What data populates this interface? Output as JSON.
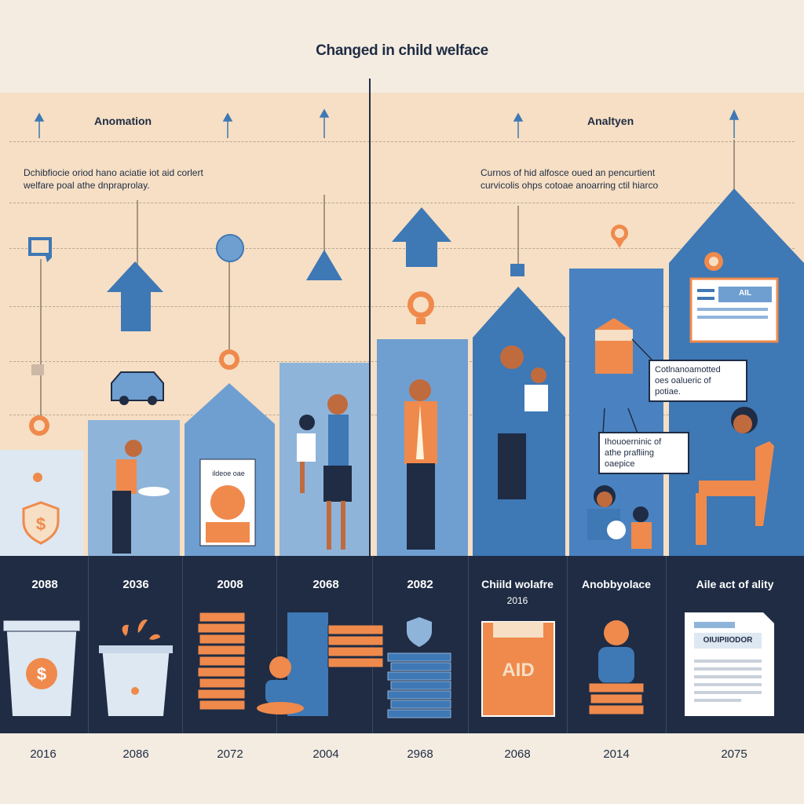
{
  "title": "Changed in child welface",
  "left_section": {
    "label": "Anomation",
    "paragraph_line1": "Dchibfiocie oriod hano aciatie iot aid corlert",
    "paragraph_line2": "welfare poal athe dnpraprolay."
  },
  "right_section": {
    "label": "Analtyen",
    "paragraph_line1": "Curnos of hid alfosce oued an pencurtient",
    "paragraph_line2": "curvicolis ohps cotoae anoarring ctil hiarco"
  },
  "poster_label": "ildeoe oae",
  "callout_1": [
    "Cotlnanoamotted",
    "oes oalueric of",
    "potiae."
  ],
  "callout_2": [
    "Ihouoerninic of",
    "athe prafliing",
    "oaepice"
  ],
  "doc_label": "AIL",
  "bottom_columns": [
    {
      "top_year": "2088",
      "caption": "",
      "bottom_year": "2016",
      "icon": "dollar-cup-icon"
    },
    {
      "top_year": "2036",
      "caption": "",
      "bottom_year": "2086",
      "icon": "bucket-icon"
    },
    {
      "top_year": "2008",
      "caption": "",
      "bottom_year": "2072",
      "icon": "coin-stack-icon"
    },
    {
      "top_year": "2068",
      "caption": "",
      "bottom_year": "2004",
      "icon": "baby-coins-icon"
    },
    {
      "top_year": "2082",
      "caption": "",
      "bottom_year": "2968",
      "icon": "book-stack-icon"
    },
    {
      "top_year": "Chiild wolafre",
      "caption": "2016",
      "bottom_year": "2068",
      "icon": "aid-box-icon"
    },
    {
      "top_year": "Anobbyolace",
      "caption": "",
      "bottom_year": "2014",
      "icon": "child-on-coins-icon"
    },
    {
      "top_year": "Aile act of ality",
      "caption": "",
      "bottom_year": "2075",
      "icon": "document-icon"
    }
  ],
  "aid_box_label": "AID",
  "document_label": "OIUIPIIODOR",
  "colors": {
    "navy": "#1f2c44",
    "blue": "#3e78b5",
    "light_blue": "#8fb4da",
    "orange": "#ef8a4c",
    "peach": "#f6dfc4",
    "cream": "#f4ece1"
  }
}
